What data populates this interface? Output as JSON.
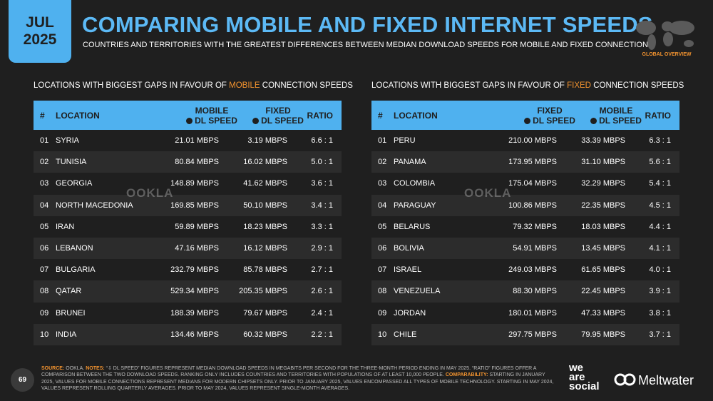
{
  "badge": {
    "month": "JUL",
    "year": "2025"
  },
  "header": {
    "title": "COMPARING MOBILE AND FIXED INTERNET SPEEDS",
    "subtitle": "COUNTRIES AND TERRITORIES WITH THE GREATEST DIFFERENCES BETWEEN MEDIAN DOWNLOAD SPEEDS FOR MOBILE AND FIXED CONNECTIONS",
    "map_label": "GLOBAL OVERVIEW"
  },
  "tables": [
    {
      "heading": [
        "LOCATIONS WITH BIGGEST GAPS IN FAVOUR OF ",
        "MOBILE",
        " CONNECTION SPEEDS"
      ],
      "watermark": "OOKLA",
      "columns": [
        [
          "#"
        ],
        [
          "LOCATION"
        ],
        [
          "MOBILE",
          "DL SPEED"
        ],
        [
          "FIXED",
          "DL SPEED"
        ],
        [
          "RATIO"
        ]
      ],
      "rows": [
        [
          "01",
          "SYRIA",
          "21.01 MBPS",
          "3.19 MBPS",
          "6.6 : 1"
        ],
        [
          "02",
          "TUNISIA",
          "80.84 MBPS",
          "16.02 MBPS",
          "5.0 : 1"
        ],
        [
          "03",
          "GEORGIA",
          "148.89 MBPS",
          "41.62 MBPS",
          "3.6 : 1"
        ],
        [
          "04",
          "NORTH MACEDONIA",
          "169.85 MBPS",
          "50.10 MBPS",
          "3.4 : 1"
        ],
        [
          "05",
          "IRAN",
          "59.89 MBPS",
          "18.23 MBPS",
          "3.3 : 1"
        ],
        [
          "06",
          "LEBANON",
          "47.16 MBPS",
          "16.12 MBPS",
          "2.9 : 1"
        ],
        [
          "07",
          "BULGARIA",
          "232.79 MBPS",
          "85.78 MBPS",
          "2.7 : 1"
        ],
        [
          "08",
          "QATAR",
          "529.34 MBPS",
          "205.35 MBPS",
          "2.6 : 1"
        ],
        [
          "09",
          "BRUNEI",
          "188.39 MBPS",
          "79.67 MBPS",
          "2.4 : 1"
        ],
        [
          "10",
          "INDIA",
          "134.46 MBPS",
          "60.32 MBPS",
          "2.2 : 1"
        ]
      ]
    },
    {
      "heading": [
        "LOCATIONS WITH BIGGEST GAPS IN FAVOUR OF ",
        "FIXED",
        " CONNECTION SPEEDS"
      ],
      "watermark": "OOKLA",
      "columns": [
        [
          "#"
        ],
        [
          "LOCATION"
        ],
        [
          "FIXED",
          "DL SPEED"
        ],
        [
          "MOBILE",
          "DL SPEED"
        ],
        [
          "RATIO"
        ]
      ],
      "rows": [
        [
          "01",
          "PERU",
          "210.00 MBPS",
          "33.39 MBPS",
          "6.3 : 1"
        ],
        [
          "02",
          "PANAMA",
          "173.95 MBPS",
          "31.10 MBPS",
          "5.6 : 1"
        ],
        [
          "03",
          "COLOMBIA",
          "175.04 MBPS",
          "32.29 MBPS",
          "5.4 : 1"
        ],
        [
          "04",
          "PARAGUAY",
          "100.86 MBPS",
          "22.35 MBPS",
          "4.5 : 1"
        ],
        [
          "05",
          "BELARUS",
          "79.32 MBPS",
          "18.03 MBPS",
          "4.4 : 1"
        ],
        [
          "06",
          "BOLIVIA",
          "54.91 MBPS",
          "13.45 MBPS",
          "4.1 : 1"
        ],
        [
          "07",
          "ISRAEL",
          "249.03 MBPS",
          "61.65 MBPS",
          "4.0 : 1"
        ],
        [
          "08",
          "VENEZUELA",
          "88.30 MBPS",
          "22.45 MBPS",
          "3.9 : 1"
        ],
        [
          "09",
          "JORDAN",
          "180.01 MBPS",
          "47.33 MBPS",
          "3.8 : 1"
        ],
        [
          "10",
          "CHILE",
          "297.75 MBPS",
          "79.95 MBPS",
          "3.7 : 1"
        ]
      ]
    }
  ],
  "footer": {
    "page_number": "69",
    "source_label": "SOURCE:",
    "source": " OOKLA. ",
    "notes_label": "NOTES:",
    "notes": " “⇩ DL SPEED” FIGURES REPRESENT MEDIAN DOWNLOAD SPEEDS IN MEGABITS PER SECOND FOR THE THREE-MONTH PERIOD ENDING IN MAY 2025. “RATIO” FIGURES OFFER A COMPARISON BETWEEN THE TWO DOWNLOAD SPEEDS. RANKING ONLY INCLUDES COUNTRIES AND TERRITORIES WITH POPULATIONS OF AT LEAST 10,000 PEOPLE. ",
    "comparability_label": "COMPARABILITY:",
    "comparability": " STARTING IN JANUARY 2025, VALUES FOR MOBILE CONNECTIONS REPRESENT MEDIANS FOR MODERN CHIPSETS ONLY. PRIOR TO JANUARY 2025, VALUES ENCOMPASSED ALL TYPES OF MOBILE TECHNOLOGY. STARTING IN MAY 2024, VALUES REPRESENT ROLLING QUARTERLY AVERAGES. PRIOR TO MAY 2024, VALUES REPRESENT SINGLE-MONTH AVERAGES."
  },
  "logos": {
    "we_are_social": [
      "we",
      "are",
      "social"
    ],
    "meltwater": "Meltwater"
  }
}
